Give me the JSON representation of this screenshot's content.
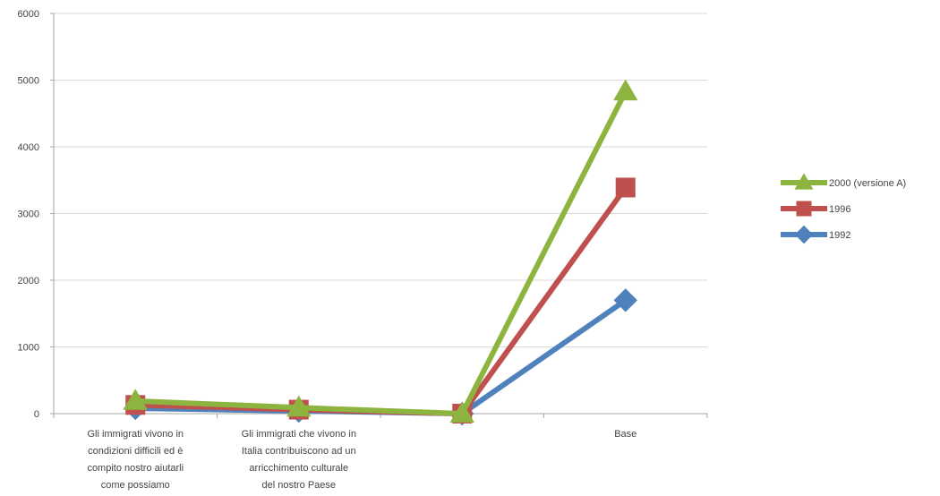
{
  "chart_data": {
    "type": "line",
    "title": "",
    "categories": [
      [
        "Gli immigrati vivono in",
        "condizioni difficili ed è",
        "compito nostro aiutarli",
        "come possiamo"
      ],
      [
        "Gli immigrati che vivono in",
        "Italia contribuiscono ad un",
        "arricchimento culturale",
        "del nostro Paese"
      ],
      [
        ""
      ],
      [
        "Base"
      ]
    ],
    "ylim": [
      0,
      6000
    ],
    "yticks": [
      "0",
      "1000",
      "2000",
      "3000",
      "4000",
      "5000",
      "6000"
    ],
    "grid": true,
    "legend_position": "right",
    "series": [
      {
        "name": "2000 (versione A)",
        "color": "#8DB43F",
        "marker": "triangle",
        "values": [
          190,
          90,
          0,
          4830
        ]
      },
      {
        "name": "1996",
        "color": "#C0504D",
        "marker": "square",
        "values": [
          130,
          60,
          0,
          3390
        ]
      },
      {
        "name": "1992",
        "color": "#4F81BD",
        "marker": "diamond",
        "values": [
          80,
          40,
          0,
          1700
        ]
      }
    ]
  }
}
